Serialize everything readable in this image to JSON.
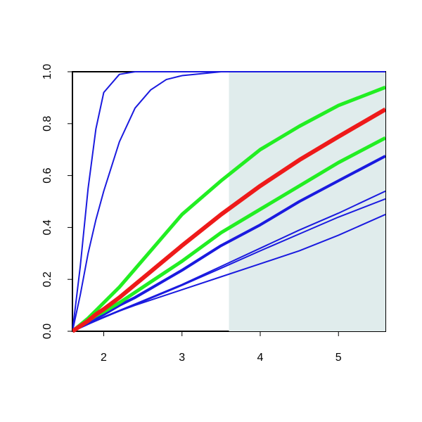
{
  "chart_data": {
    "type": "line",
    "x": [
      1.6,
      1.7,
      1.8,
      1.9,
      2.0,
      2.2,
      2.4,
      2.6,
      2.8,
      3.0,
      3.5,
      4.0,
      4.5,
      5.0,
      5.6
    ],
    "series": [
      {
        "color": "#1a1adf",
        "width": 2,
        "values": [
          0,
          0.25,
          0.55,
          0.78,
          0.92,
          0.99,
          1,
          1,
          1,
          1,
          1,
          1,
          1,
          1,
          1
        ]
      },
      {
        "color": "#1a1adf",
        "width": 2,
        "values": [
          0,
          0.14,
          0.3,
          0.43,
          0.54,
          0.73,
          0.86,
          0.93,
          0.97,
          0.985,
          1,
          1,
          1,
          1,
          1
        ]
      },
      {
        "color": "#1a1adf",
        "width": 2,
        "values": [
          0,
          0.014,
          0.028,
          0.042,
          0.055,
          0.08,
          0.105,
          0.13,
          0.155,
          0.18,
          0.25,
          0.32,
          0.39,
          0.455,
          0.54
        ]
      },
      {
        "color": "#1a1adf",
        "width": 2,
        "values": [
          0,
          0.013,
          0.027,
          0.04,
          0.053,
          0.078,
          0.102,
          0.127,
          0.152,
          0.177,
          0.243,
          0.31,
          0.375,
          0.44,
          0.51
        ]
      },
      {
        "color": "#1a1adf",
        "width": 2,
        "values": [
          0,
          0.014,
          0.028,
          0.042,
          0.055,
          0.078,
          0.1,
          0.12,
          0.14,
          0.16,
          0.21,
          0.26,
          0.31,
          0.37,
          0.45
        ]
      },
      {
        "color": "#1a1adf",
        "width": 4,
        "values": [
          0,
          0.017,
          0.033,
          0.05,
          0.065,
          0.1,
          0.13,
          0.165,
          0.2,
          0.235,
          0.33,
          0.41,
          0.5,
          0.58,
          0.675
        ]
      },
      {
        "color": "#22ee22",
        "width": 5,
        "values": [
          0,
          0.02,
          0.04,
          0.06,
          0.075,
          0.11,
          0.15,
          0.19,
          0.23,
          0.27,
          0.38,
          0.47,
          0.56,
          0.65,
          0.745
        ]
      },
      {
        "color": "#22ee22",
        "width": 5,
        "values": [
          0,
          0.025,
          0.05,
          0.08,
          0.11,
          0.17,
          0.24,
          0.31,
          0.38,
          0.45,
          0.58,
          0.7,
          0.79,
          0.87,
          0.94
        ]
      },
      {
        "color": "#ee1a1a",
        "width": 6,
        "values": [
          0,
          0.02,
          0.04,
          0.065,
          0.085,
          0.13,
          0.18,
          0.23,
          0.28,
          0.33,
          0.45,
          0.56,
          0.66,
          0.75,
          0.855
        ]
      }
    ],
    "shaded_region": {
      "x": [
        3.6,
        5.6
      ],
      "color": "#e0ecec"
    },
    "xlim": [
      1.6,
      5.6
    ],
    "ylim": [
      0,
      1
    ],
    "xticks": [
      2,
      3,
      4,
      5
    ],
    "yticks": [
      {
        "value": 0,
        "label": "0.0"
      },
      0.2,
      0.4,
      0.6,
      0.8,
      {
        "value": 1,
        "label": "1.0"
      }
    ]
  }
}
